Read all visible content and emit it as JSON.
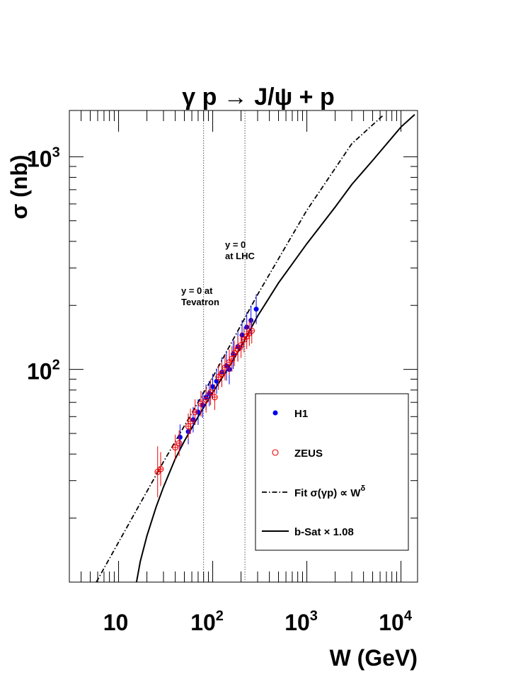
{
  "chart_data": {
    "type": "scatter",
    "title": "γ p → J/ψ + p",
    "xlabel": "W  (GeV)",
    "ylabel": "σ  (nb)",
    "x_scale": "log",
    "y_scale": "log",
    "xlim": [
      3,
      15000
    ],
    "ylim": [
      10,
      1650
    ],
    "x_tick_labels": [
      {
        "value": 10,
        "base": "10",
        "exp": ""
      },
      {
        "value": 100,
        "base": "10",
        "exp": "2"
      },
      {
        "value": 1000,
        "base": "10",
        "exp": "3"
      },
      {
        "value": 10000,
        "base": "10",
        "exp": "4"
      }
    ],
    "y_tick_labels": [
      {
        "value": 100,
        "base": "10",
        "exp": "2"
      },
      {
        "value": 1000,
        "base": "10",
        "exp": "3"
      }
    ],
    "grid": false,
    "legend_position": "bottom-right",
    "vlines": [
      {
        "x": 80,
        "label_lines": [
          "y = 0 at",
          "Tevatron"
        ]
      },
      {
        "x": 220,
        "label_lines": [
          "y = 0",
          "at LHC"
        ]
      }
    ],
    "series": [
      {
        "name": "H1",
        "marker": "filled-circle",
        "color": "#0000ee",
        "x": [
          45,
          55,
          62,
          70,
          78,
          85,
          92,
          100,
          110,
          125,
          140,
          150,
          165,
          185,
          205,
          230,
          255,
          290
        ],
        "y": [
          48,
          51,
          58,
          63,
          68,
          74,
          77,
          83,
          88,
          97,
          104,
          100,
          118,
          128,
          145,
          158,
          170,
          192
        ],
        "err": [
          0.06,
          0.06,
          0.06,
          0.06,
          0.06,
          0.06,
          0.06,
          0.06,
          0.06,
          0.07,
          0.07,
          0.07,
          0.07,
          0.07,
          0.07,
          0.07,
          0.07,
          0.07
        ]
      },
      {
        "name": "ZEUS",
        "marker": "open-circle",
        "color": "#ee0000",
        "x": [
          26,
          28,
          40,
          44,
          55,
          58,
          65,
          75,
          85,
          95,
          105,
          115,
          125,
          135,
          150,
          160,
          170,
          185,
          200,
          215,
          230,
          245,
          260
        ],
        "y": [
          33,
          34,
          43,
          45,
          54,
          57,
          63,
          69,
          72,
          78,
          74,
          92,
          95,
          102,
          108,
          112,
          119,
          125,
          130,
          138,
          143,
          148,
          152
        ],
        "err": [
          0.12,
          0.08,
          0.06,
          0.06,
          0.06,
          0.06,
          0.06,
          0.06,
          0.06,
          0.06,
          0.06,
          0.06,
          0.06,
          0.06,
          0.06,
          0.06,
          0.06,
          0.06,
          0.06,
          0.06,
          0.06,
          0.06,
          0.06
        ]
      },
      {
        "name": "Fit σ(γp) ∝ W^δ",
        "style": "dash-dot",
        "color": "#000000",
        "x": [
          5.8,
          10,
          30,
          100,
          300,
          1000,
          3000,
          6500
        ],
        "y": [
          10,
          15.4,
          36.8,
          92,
          225,
          560,
          1150,
          1570
        ]
      },
      {
        "name": "b-Sat × 1.08",
        "style": "solid",
        "color": "#000000",
        "x": [
          15.5,
          17,
          20,
          25,
          30,
          40,
          50,
          70,
          100,
          150,
          200,
          300,
          500,
          1000,
          2000,
          3000,
          5000,
          10000,
          14000
        ],
        "y": [
          10,
          12.5,
          16.5,
          22.5,
          28,
          38,
          46,
          60,
          78,
          103,
          128,
          178,
          255,
          390,
          580,
          740,
          960,
          1380,
          1580
        ]
      }
    ],
    "legend": [
      {
        "label": "H1",
        "marker": "filled-circle",
        "color": "#0000ee"
      },
      {
        "label": "ZEUS",
        "marker": "open-circle",
        "color": "#ee0000"
      },
      {
        "label_prefix": "Fit σ(γp) ∝ W",
        "label_sup": "δ",
        "style": "dash-dot",
        "color": "#000000"
      },
      {
        "label": "b-Sat × 1.08",
        "style": "solid",
        "color": "#000000"
      }
    ]
  }
}
